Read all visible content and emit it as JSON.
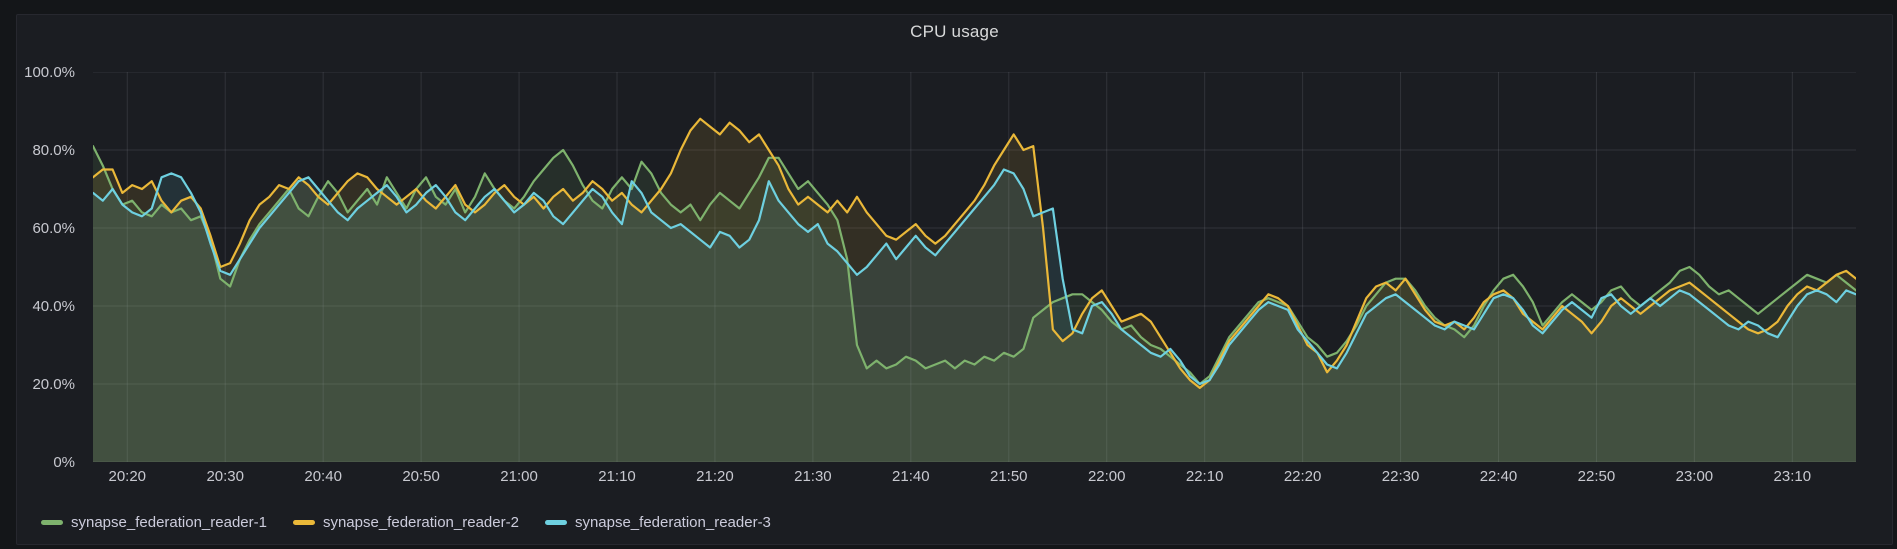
{
  "panel": {
    "title": "CPU usage"
  },
  "chart_data": {
    "type": "area",
    "title": "CPU usage",
    "grid": true,
    "legend_position": "bottom-left",
    "y_unit": "%",
    "y_domain": [
      0,
      100
    ],
    "y_ticks": [
      {
        "label": "0%",
        "value": 0
      },
      {
        "label": "20.0%",
        "value": 20
      },
      {
        "label": "40.0%",
        "value": 40
      },
      {
        "label": "60.0%",
        "value": 60
      },
      {
        "label": "80.0%",
        "value": 80
      },
      {
        "label": "100.0%",
        "value": 100
      }
    ],
    "t_domain_minutes": [
      0,
      180
    ],
    "sample_interval_minutes": 1,
    "x_ticks": [
      {
        "label": "20:20",
        "t": 3.5
      },
      {
        "label": "20:30",
        "t": 13.5
      },
      {
        "label": "20:40",
        "t": 23.5
      },
      {
        "label": "20:50",
        "t": 33.5
      },
      {
        "label": "21:00",
        "t": 43.5
      },
      {
        "label": "21:10",
        "t": 53.5
      },
      {
        "label": "21:20",
        "t": 63.5
      },
      {
        "label": "21:30",
        "t": 73.5
      },
      {
        "label": "21:40",
        "t": 83.5
      },
      {
        "label": "21:50",
        "t": 93.5
      },
      {
        "label": "22:00",
        "t": 103.5
      },
      {
        "label": "22:10",
        "t": 113.5
      },
      {
        "label": "22:20",
        "t": 123.5
      },
      {
        "label": "22:30",
        "t": 133.5
      },
      {
        "label": "22:40",
        "t": 143.5
      },
      {
        "label": "22:50",
        "t": 153.5
      },
      {
        "label": "23:00",
        "t": 163.5
      },
      {
        "label": "23:10",
        "t": 173.5
      }
    ],
    "series": [
      {
        "name": "synapse_federation_reader-1",
        "color": "#7EB26D",
        "values": [
          81,
          76,
          70,
          66,
          67,
          64,
          63,
          66,
          64,
          65,
          62,
          63,
          57,
          47,
          45,
          52,
          57,
          61,
          64,
          67,
          70,
          65,
          63,
          68,
          72,
          69,
          64,
          67,
          70,
          66,
          73,
          69,
          65,
          70,
          73,
          68,
          66,
          70,
          64,
          68,
          74,
          70,
          67,
          65,
          68,
          72,
          75,
          78,
          80,
          76,
          71,
          67,
          65,
          70,
          73,
          70,
          77,
          74,
          69,
          66,
          64,
          66,
          62,
          66,
          69,
          67,
          65,
          69,
          73,
          78,
          78,
          74,
          70,
          72,
          69,
          66,
          62,
          52,
          30,
          24,
          26,
          24,
          25,
          27,
          26,
          24,
          25,
          26,
          24,
          26,
          25,
          27,
          26,
          28,
          27,
          29,
          37,
          39,
          41,
          42,
          43,
          43,
          41,
          39,
          36,
          34,
          35,
          32,
          30,
          29,
          27,
          25,
          23,
          20,
          22,
          27,
          32,
          35,
          38,
          41,
          42,
          41,
          40,
          36,
          32,
          30,
          27,
          28,
          31,
          35,
          40,
          43,
          46,
          47,
          47,
          44,
          40,
          37,
          35,
          34,
          32,
          35,
          40,
          44,
          47,
          48,
          45,
          41,
          35,
          38,
          41,
          43,
          41,
          39,
          41,
          44,
          45,
          42,
          40,
          42,
          44,
          46,
          49,
          50,
          48,
          45,
          43,
          44,
          42,
          40,
          38,
          40,
          42,
          44,
          46,
          48,
          47,
          46,
          48,
          46,
          44
        ]
      },
      {
        "name": "synapse_federation_reader-2",
        "color": "#EAB839",
        "values": [
          73,
          75,
          75,
          69,
          71,
          70,
          72,
          67,
          64,
          67,
          68,
          65,
          58,
          50,
          51,
          56,
          62,
          66,
          68,
          71,
          70,
          73,
          71,
          68,
          66,
          69,
          72,
          74,
          73,
          70,
          68,
          66,
          68,
          70,
          67,
          65,
          68,
          71,
          66,
          64,
          66,
          69,
          71,
          68,
          66,
          68,
          65,
          68,
          70,
          67,
          69,
          72,
          70,
          67,
          69,
          66,
          64,
          67,
          70,
          74,
          80,
          85,
          88,
          86,
          84,
          87,
          85,
          82,
          84,
          80,
          76,
          70,
          66,
          68,
          66,
          64,
          67,
          64,
          68,
          64,
          61,
          58,
          57,
          59,
          61,
          58,
          56,
          58,
          61,
          64,
          67,
          71,
          76,
          80,
          84,
          80,
          81,
          60,
          34,
          31,
          33,
          38,
          42,
          44,
          40,
          36,
          37,
          38,
          36,
          32,
          28,
          24,
          21,
          19,
          21,
          26,
          31,
          34,
          37,
          40,
          43,
          42,
          40,
          35,
          30,
          28,
          23,
          26,
          30,
          36,
          42,
          45,
          46,
          44,
          47,
          43,
          39,
          36,
          35,
          36,
          34,
          37,
          41,
          43,
          44,
          42,
          38,
          36,
          34,
          37,
          40,
          38,
          36,
          33,
          36,
          40,
          42,
          40,
          38,
          40,
          42,
          44,
          45,
          46,
          44,
          42,
          40,
          38,
          36,
          34,
          33,
          34,
          36,
          40,
          43,
          45,
          44,
          46,
          48,
          49,
          47
        ]
      },
      {
        "name": "synapse_federation_reader-3",
        "color": "#6ED0E0",
        "values": [
          69,
          67,
          70,
          66,
          64,
          63,
          65,
          73,
          74,
          73,
          69,
          64,
          56,
          49,
          48,
          52,
          56,
          60,
          63,
          66,
          69,
          72,
          73,
          70,
          67,
          64,
          62,
          65,
          67,
          69,
          71,
          68,
          64,
          66,
          69,
          71,
          68,
          64,
          62,
          65,
          68,
          70,
          67,
          64,
          66,
          69,
          67,
          63,
          61,
          64,
          67,
          70,
          68,
          64,
          61,
          72,
          69,
          64,
          62,
          60,
          61,
          59,
          57,
          55,
          59,
          58,
          55,
          57,
          62,
          72,
          67,
          64,
          61,
          59,
          61,
          56,
          54,
          51,
          48,
          50,
          53,
          56,
          52,
          55,
          58,
          55,
          53,
          56,
          59,
          62,
          65,
          68,
          71,
          75,
          74,
          70,
          63,
          64,
          65,
          47,
          34,
          33,
          40,
          41,
          38,
          34,
          32,
          30,
          28,
          27,
          29,
          26,
          22,
          20,
          21,
          25,
          30,
          33,
          36,
          39,
          41,
          40,
          39,
          34,
          31,
          28,
          25,
          24,
          28,
          33,
          38,
          40,
          42,
          43,
          41,
          39,
          37,
          35,
          34,
          36,
          35,
          34,
          38,
          42,
          43,
          42,
          39,
          35,
          33,
          36,
          39,
          41,
          39,
          37,
          42,
          43,
          40,
          38,
          40,
          42,
          40,
          42,
          44,
          43,
          41,
          39,
          37,
          35,
          34,
          36,
          35,
          33,
          32,
          36,
          40,
          43,
          44,
          43,
          41,
          44,
          43
        ]
      }
    ],
    "style": {
      "grid_color": "rgba(204,204,220,0.13)",
      "fill_opacity": 0.12,
      "line_width": 2.2,
      "axis_text_color": "#c8c9d0",
      "title_color": "#d8d9da",
      "panel_bg": "#1b1d22",
      "page_bg": "#141619"
    }
  }
}
